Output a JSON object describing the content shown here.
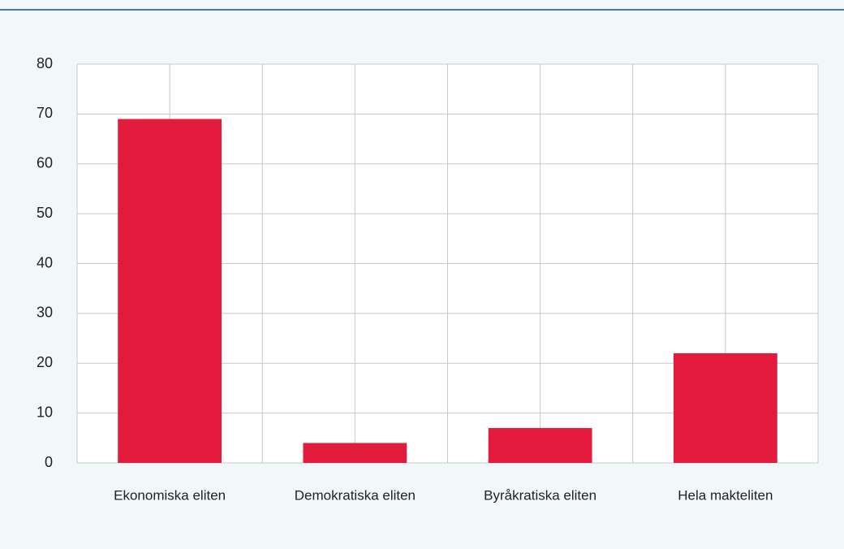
{
  "chart_data": {
    "type": "bar",
    "categories": [
      "Ekonomiska eliten",
      "Demokratiska eliten",
      "Byråkratiska eliten",
      "Hela makteliten"
    ],
    "values": [
      69,
      4,
      7,
      22
    ],
    "color": "#e31c3d",
    "ylim": [
      0,
      80
    ],
    "yticks": [
      0,
      10,
      20,
      30,
      40,
      50,
      60,
      70,
      80
    ],
    "grid": true
  }
}
